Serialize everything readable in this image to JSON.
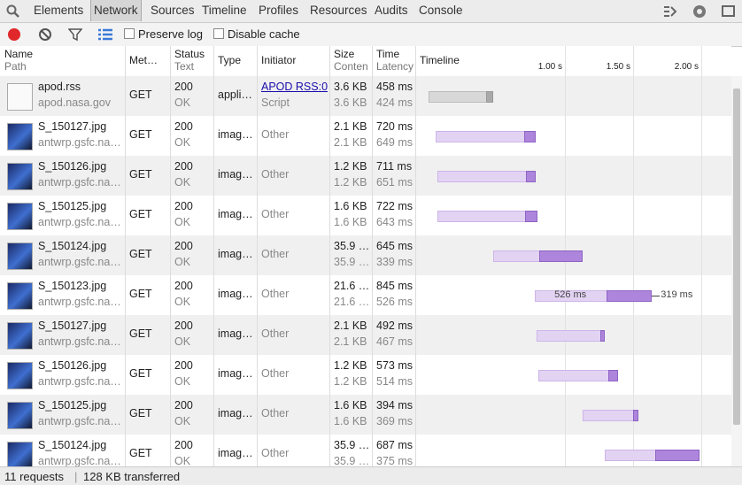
{
  "toolbar": {
    "tabs": [
      "Elements",
      "Network",
      "Sources",
      "Timeline",
      "Profiles",
      "Resources",
      "Audits",
      "Console"
    ],
    "active": 1
  },
  "filters": {
    "preserve_log": "Preserve log",
    "disable_cache": "Disable cache"
  },
  "table": {
    "columns": [
      {
        "title": "Name",
        "sub": "Path"
      },
      {
        "title": "Met…"
      },
      {
        "title": "Status",
        "sub": "Text"
      },
      {
        "title": "Type"
      },
      {
        "title": "Initiator"
      },
      {
        "title": "Size",
        "sub": "Conten"
      },
      {
        "title": "Time",
        "sub": "Latency"
      },
      {
        "title": "Timeline"
      }
    ],
    "rows": [
      {
        "name": "apod.rss",
        "path": "apod.nasa.gov",
        "method": "GET",
        "status": "200",
        "status_text": "OK",
        "type": "appli…",
        "initiator": "APOD RSS:0",
        "initiator_sub": "Script",
        "size": "3.6 KB",
        "content": "3.6 KB",
        "time": "458 ms",
        "latency": "424 ms"
      },
      {
        "name": "S_150127.jpg",
        "path": "antwrp.gsfc.na…",
        "method": "GET",
        "status": "200",
        "status_text": "OK",
        "type": "imag…",
        "initiator": "Other",
        "size": "2.1 KB",
        "content": "2.1 KB",
        "time": "720 ms",
        "latency": "649 ms"
      },
      {
        "name": "S_150126.jpg",
        "path": "antwrp.gsfc.na…",
        "method": "GET",
        "status": "200",
        "status_text": "OK",
        "type": "imag…",
        "initiator": "Other",
        "size": "1.2 KB",
        "content": "1.2 KB",
        "time": "711 ms",
        "latency": "651 ms"
      },
      {
        "name": "S_150125.jpg",
        "path": "antwrp.gsfc.na…",
        "method": "GET",
        "status": "200",
        "status_text": "OK",
        "type": "imag…",
        "initiator": "Other",
        "size": "1.6 KB",
        "content": "1.6 KB",
        "time": "722 ms",
        "latency": "643 ms"
      },
      {
        "name": "S_150124.jpg",
        "path": "antwrp.gsfc.na…",
        "method": "GET",
        "status": "200",
        "status_text": "OK",
        "type": "imag…",
        "initiator": "Other",
        "size": "35.9 …",
        "content": "35.9 …",
        "time": "645 ms",
        "latency": "339 ms"
      },
      {
        "name": "S_150123.jpg",
        "path": "antwrp.gsfc.na…",
        "method": "GET",
        "status": "200",
        "status_text": "OK",
        "type": "imag…",
        "initiator": "Other",
        "size": "21.6 …",
        "content": "21.6 …",
        "time": "845 ms",
        "latency": "526 ms"
      },
      {
        "name": "S_150127.jpg",
        "path": "antwrp.gsfc.na…",
        "method": "GET",
        "status": "200",
        "status_text": "OK",
        "type": "imag…",
        "initiator": "Other",
        "size": "2.1 KB",
        "content": "2.1 KB",
        "time": "492 ms",
        "latency": "467 ms"
      },
      {
        "name": "S_150126.jpg",
        "path": "antwrp.gsfc.na…",
        "method": "GET",
        "status": "200",
        "status_text": "OK",
        "type": "imag…",
        "initiator": "Other",
        "size": "1.2 KB",
        "content": "1.2 KB",
        "time": "573 ms",
        "latency": "514 ms"
      },
      {
        "name": "S_150125.jpg",
        "path": "antwrp.gsfc.na…",
        "method": "GET",
        "status": "200",
        "status_text": "OK",
        "type": "imag…",
        "initiator": "Other",
        "size": "1.6 KB",
        "content": "1.6 KB",
        "time": "394 ms",
        "latency": "369 ms"
      },
      {
        "name": "S_150124.jpg",
        "path": "antwrp.gsfc.na…",
        "method": "GET",
        "status": "200",
        "status_text": "OK",
        "type": "imag…",
        "initiator": "Other",
        "size": "35.9 …",
        "content": "35.9 …",
        "time": "687 ms",
        "latency": "375 ms"
      }
    ]
  },
  "timeline": {
    "ticks": [
      {
        "value": 1000,
        "label": "1.00 s"
      },
      {
        "value": 1500,
        "label": "1.50 s"
      },
      {
        "value": 2000,
        "label": "2.00 s"
      }
    ],
    "bars": [
      {
        "start": 0,
        "latency": 424,
        "time": 458
      },
      {
        "start": 50,
        "latency": 649,
        "time": 720
      },
      {
        "start": 65,
        "latency": 651,
        "time": 711
      },
      {
        "start": 65,
        "latency": 643,
        "time": 722
      },
      {
        "start": 475,
        "latency": 339,
        "time": 645
      },
      {
        "start": 780,
        "latency": 526,
        "time": 845,
        "labels": [
          "526 ms",
          "319 ms"
        ]
      },
      {
        "start": 790,
        "latency": 467,
        "time": 492
      },
      {
        "start": 805,
        "latency": 514,
        "time": 573
      },
      {
        "start": 1130,
        "latency": 369,
        "time": 394
      },
      {
        "start": 1290,
        "latency": 375,
        "time": 687
      }
    ]
  },
  "footer": {
    "requests": "11 requests",
    "transferred": "128 KB transferred"
  }
}
